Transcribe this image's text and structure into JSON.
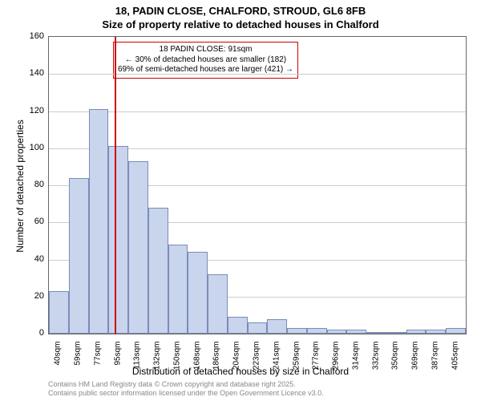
{
  "title_line1": "18, PADIN CLOSE, CHALFORD, STROUD, GL6 8FB",
  "title_line2": "Size of property relative to detached houses in Chalford",
  "chart": {
    "type": "histogram",
    "ylabel": "Number of detached properties",
    "xlabel": "Distribution of detached houses by size in Chalford",
    "ylim": [
      0,
      160
    ],
    "ytick_step": 20,
    "bar_color": "#c9d4ed",
    "bar_border_color": "#7a8db8",
    "grid_color": "#cccccc",
    "background_color": "#ffffff",
    "categories": [
      "40sqm",
      "59sqm",
      "77sqm",
      "95sqm",
      "113sqm",
      "132sqm",
      "150sqm",
      "168sqm",
      "186sqm",
      "204sqm",
      "223sqm",
      "241sqm",
      "259sqm",
      "277sqm",
      "296sqm",
      "314sqm",
      "332sqm",
      "350sqm",
      "369sqm",
      "387sqm",
      "405sqm"
    ],
    "values": [
      23,
      84,
      121,
      101,
      93,
      68,
      48,
      44,
      32,
      9,
      6,
      8,
      3,
      3,
      2,
      2,
      1,
      0,
      2,
      2,
      3
    ],
    "reference_line": {
      "position_index": 2.8,
      "color": "#cc0000"
    },
    "callout": {
      "line1": "18 PADIN CLOSE: 91sqm",
      "line2": "← 30% of detached houses are smaller (182)",
      "line3": "69% of semi-detached houses are larger (421) →",
      "border_color": "#cc0000"
    }
  },
  "attribution_line1": "Contains HM Land Registry data © Crown copyright and database right 2025.",
  "attribution_line2": "Contains public sector information licensed under the Open Government Licence v3.0."
}
